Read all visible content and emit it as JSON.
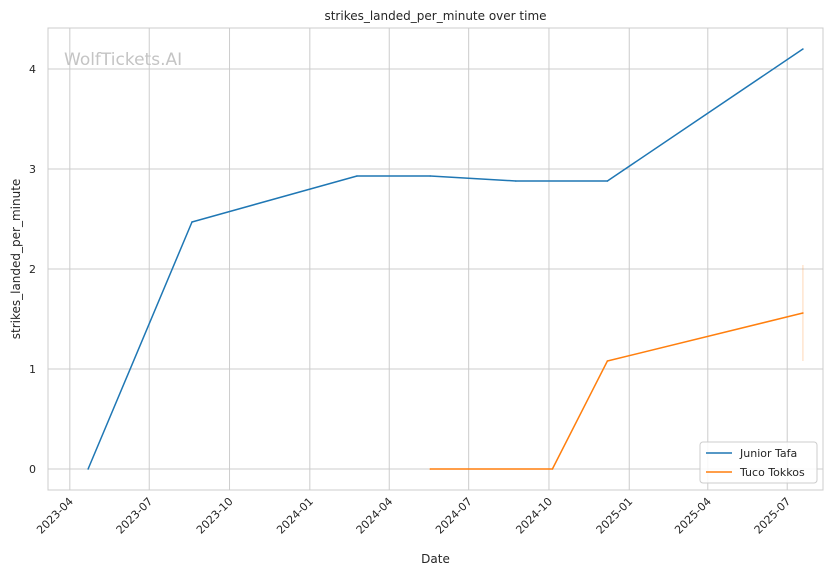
{
  "chart_data": {
    "type": "line",
    "title": "strikes_landed_per_minute over time",
    "xlabel": "Date",
    "ylabel": "strikes_landed_per_minute",
    "watermark": "WolfTickets.AI",
    "x_ticks": [
      "2023-04",
      "2023-07",
      "2023-10",
      "2024-01",
      "2024-04",
      "2024-07",
      "2024-10",
      "2025-01",
      "2025-04",
      "2025-07"
    ],
    "y_ticks": [
      "0",
      "1",
      "2",
      "3",
      "4"
    ],
    "xlim": [
      "2023-03-07",
      "2025-08-11"
    ],
    "ylim": [
      -0.21,
      4.41
    ],
    "grid": true,
    "legend_position": "bottom-right",
    "series": [
      {
        "name": "Junior Tafa",
        "color": "#1f77b4",
        "points": [
          [
            "2023-04-22",
            0
          ],
          [
            "2023-08-19",
            2.47
          ],
          [
            "2024-02-24",
            2.93
          ],
          [
            "2024-05-18",
            2.93
          ],
          [
            "2024-08-24",
            2.88
          ],
          [
            "2024-12-07",
            2.88
          ],
          [
            "2025-07-19",
            4.2
          ]
        ]
      },
      {
        "name": "Tuco Tokkos",
        "color": "#ff7f0e",
        "points": [
          [
            "2024-05-18",
            0
          ],
          [
            "2024-10-05",
            0
          ],
          [
            "2024-12-07",
            1.08
          ],
          [
            "2025-07-19",
            1.56
          ]
        ],
        "error_bar": {
          "x": "2025-07-19",
          "low": 1.08,
          "high": 2.04
        }
      }
    ]
  }
}
